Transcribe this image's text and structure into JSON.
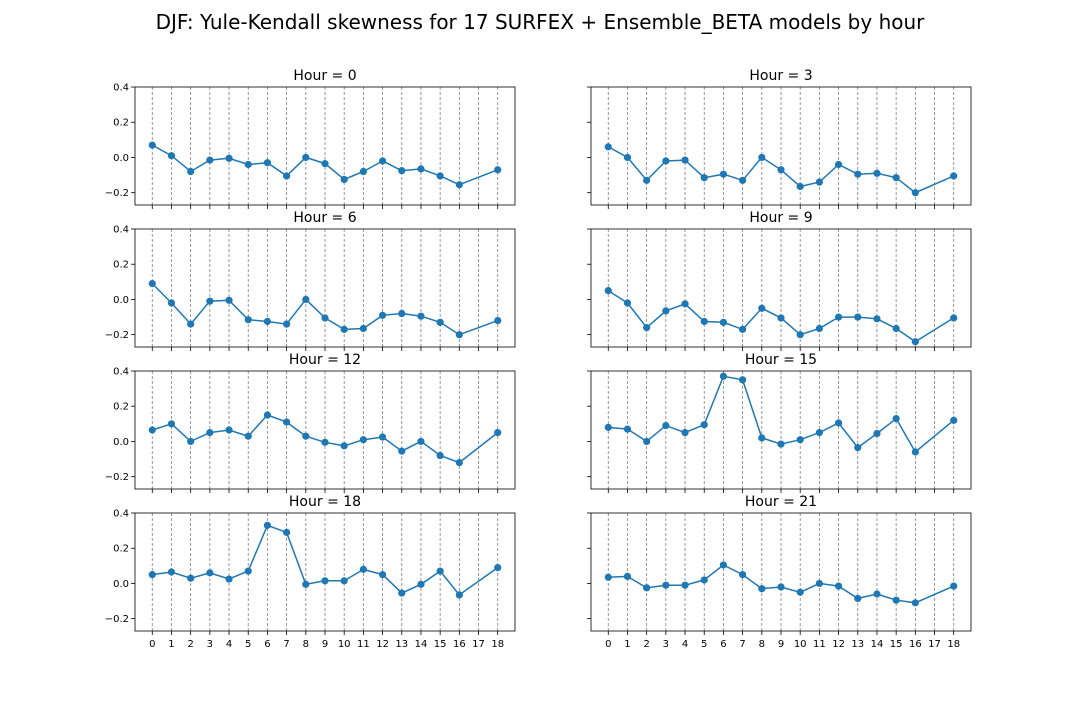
{
  "figure": {
    "title": "DJF: Yule-Kendall skewness for 17 SURFEX + Ensemble_BETA models by hour"
  },
  "chart_data": [
    {
      "type": "line",
      "title": "Hour = 0",
      "x": [
        0,
        1,
        2,
        3,
        4,
        5,
        6,
        7,
        8,
        9,
        10,
        11,
        12,
        13,
        14,
        15,
        16,
        18
      ],
      "values": [
        0.07,
        0.01,
        -0.08,
        -0.015,
        -0.005,
        -0.04,
        -0.03,
        -0.105,
        0.0,
        -0.035,
        -0.125,
        -0.08,
        -0.02,
        -0.075,
        -0.065,
        -0.105,
        -0.155,
        -0.07
      ],
      "ylim": [
        -0.27,
        0.4
      ],
      "yticks": [
        -0.2,
        0.0,
        0.2,
        0.4
      ],
      "xticks": [
        0,
        1,
        2,
        3,
        4,
        5,
        6,
        7,
        8,
        9,
        10,
        11,
        12,
        13,
        14,
        15,
        16,
        17,
        18
      ],
      "vgrid": true
    },
    {
      "type": "line",
      "title": "Hour = 3",
      "x": [
        0,
        1,
        2,
        3,
        4,
        5,
        6,
        7,
        8,
        9,
        10,
        11,
        12,
        13,
        14,
        15,
        16,
        18
      ],
      "values": [
        0.06,
        0.0,
        -0.13,
        -0.02,
        -0.015,
        -0.115,
        -0.095,
        -0.13,
        0.0,
        -0.07,
        -0.165,
        -0.14,
        -0.04,
        -0.095,
        -0.09,
        -0.115,
        -0.2,
        -0.105
      ],
      "ylim": [
        -0.27,
        0.4
      ],
      "yticks": [
        -0.2,
        0.0,
        0.2,
        0.4
      ],
      "xticks": [
        0,
        1,
        2,
        3,
        4,
        5,
        6,
        7,
        8,
        9,
        10,
        11,
        12,
        13,
        14,
        15,
        16,
        17,
        18
      ],
      "vgrid": true
    },
    {
      "type": "line",
      "title": "Hour = 6",
      "x": [
        0,
        1,
        2,
        3,
        4,
        5,
        6,
        7,
        8,
        9,
        10,
        11,
        12,
        13,
        14,
        15,
        16,
        18
      ],
      "values": [
        0.09,
        -0.02,
        -0.14,
        -0.01,
        -0.005,
        -0.115,
        -0.125,
        -0.14,
        0.0,
        -0.105,
        -0.17,
        -0.165,
        -0.09,
        -0.08,
        -0.095,
        -0.13,
        -0.2,
        -0.12
      ],
      "ylim": [
        -0.27,
        0.4
      ],
      "yticks": [
        -0.2,
        0.0,
        0.2,
        0.4
      ],
      "xticks": [
        0,
        1,
        2,
        3,
        4,
        5,
        6,
        7,
        8,
        9,
        10,
        11,
        12,
        13,
        14,
        15,
        16,
        17,
        18
      ],
      "vgrid": true
    },
    {
      "type": "line",
      "title": "Hour = 9",
      "x": [
        0,
        1,
        2,
        3,
        4,
        5,
        6,
        7,
        8,
        9,
        10,
        11,
        12,
        13,
        14,
        15,
        16,
        18
      ],
      "values": [
        0.05,
        -0.02,
        -0.16,
        -0.065,
        -0.025,
        -0.125,
        -0.13,
        -0.17,
        -0.05,
        -0.105,
        -0.2,
        -0.165,
        -0.1,
        -0.1,
        -0.11,
        -0.165,
        -0.24,
        -0.105
      ],
      "ylim": [
        -0.27,
        0.4
      ],
      "yticks": [
        -0.2,
        0.0,
        0.2,
        0.4
      ],
      "xticks": [
        0,
        1,
        2,
        3,
        4,
        5,
        6,
        7,
        8,
        9,
        10,
        11,
        12,
        13,
        14,
        15,
        16,
        17,
        18
      ],
      "vgrid": true
    },
    {
      "type": "line",
      "title": "Hour = 12",
      "x": [
        0,
        1,
        2,
        3,
        4,
        5,
        6,
        7,
        8,
        9,
        10,
        11,
        12,
        13,
        14,
        15,
        16,
        18
      ],
      "values": [
        0.065,
        0.1,
        0.0,
        0.05,
        0.065,
        0.03,
        0.15,
        0.11,
        0.03,
        -0.005,
        -0.025,
        0.01,
        0.025,
        -0.055,
        0.0,
        -0.08,
        -0.12,
        0.05
      ],
      "ylim": [
        -0.27,
        0.4
      ],
      "yticks": [
        -0.2,
        0.0,
        0.2,
        0.4
      ],
      "xticks": [
        0,
        1,
        2,
        3,
        4,
        5,
        6,
        7,
        8,
        9,
        10,
        11,
        12,
        13,
        14,
        15,
        16,
        17,
        18
      ],
      "vgrid": true
    },
    {
      "type": "line",
      "title": "Hour = 15",
      "x": [
        0,
        1,
        2,
        3,
        4,
        5,
        6,
        7,
        8,
        9,
        10,
        11,
        12,
        13,
        14,
        15,
        16,
        18
      ],
      "values": [
        0.08,
        0.07,
        0.0,
        0.09,
        0.05,
        0.095,
        0.37,
        0.35,
        0.02,
        -0.015,
        0.01,
        0.05,
        0.105,
        -0.035,
        0.045,
        0.13,
        -0.06,
        0.12
      ],
      "ylim": [
        -0.27,
        0.4
      ],
      "yticks": [
        -0.2,
        0.0,
        0.2,
        0.4
      ],
      "xticks": [
        0,
        1,
        2,
        3,
        4,
        5,
        6,
        7,
        8,
        9,
        10,
        11,
        12,
        13,
        14,
        15,
        16,
        17,
        18
      ],
      "vgrid": true
    },
    {
      "type": "line",
      "title": "Hour = 18",
      "x": [
        0,
        1,
        2,
        3,
        4,
        5,
        6,
        7,
        8,
        9,
        10,
        11,
        12,
        13,
        14,
        15,
        16,
        18
      ],
      "values": [
        0.05,
        0.065,
        0.03,
        0.06,
        0.025,
        0.07,
        0.33,
        0.29,
        -0.005,
        0.015,
        0.015,
        0.08,
        0.05,
        -0.055,
        -0.005,
        0.07,
        -0.065,
        0.09
      ],
      "ylim": [
        -0.27,
        0.4
      ],
      "yticks": [
        -0.2,
        0.0,
        0.2,
        0.4
      ],
      "xticks": [
        0,
        1,
        2,
        3,
        4,
        5,
        6,
        7,
        8,
        9,
        10,
        11,
        12,
        13,
        14,
        15,
        16,
        17,
        18
      ],
      "vgrid": true
    },
    {
      "type": "line",
      "title": "Hour = 21",
      "x": [
        0,
        1,
        2,
        3,
        4,
        5,
        6,
        7,
        8,
        9,
        10,
        11,
        12,
        13,
        14,
        15,
        16,
        18
      ],
      "values": [
        0.035,
        0.04,
        -0.025,
        -0.01,
        -0.01,
        0.02,
        0.105,
        0.05,
        -0.03,
        -0.02,
        -0.05,
        0.0,
        -0.015,
        -0.085,
        -0.06,
        -0.095,
        -0.11,
        -0.015
      ],
      "ylim": [
        -0.27,
        0.4
      ],
      "yticks": [
        -0.2,
        0.0,
        0.2,
        0.4
      ],
      "xticks": [
        0,
        1,
        2,
        3,
        4,
        5,
        6,
        7,
        8,
        9,
        10,
        11,
        12,
        13,
        14,
        15,
        16,
        17,
        18
      ],
      "vgrid": true
    }
  ],
  "style": {
    "line_color": "#1f77b4",
    "grid_color": "#808080",
    "axis_color": "#000000"
  }
}
